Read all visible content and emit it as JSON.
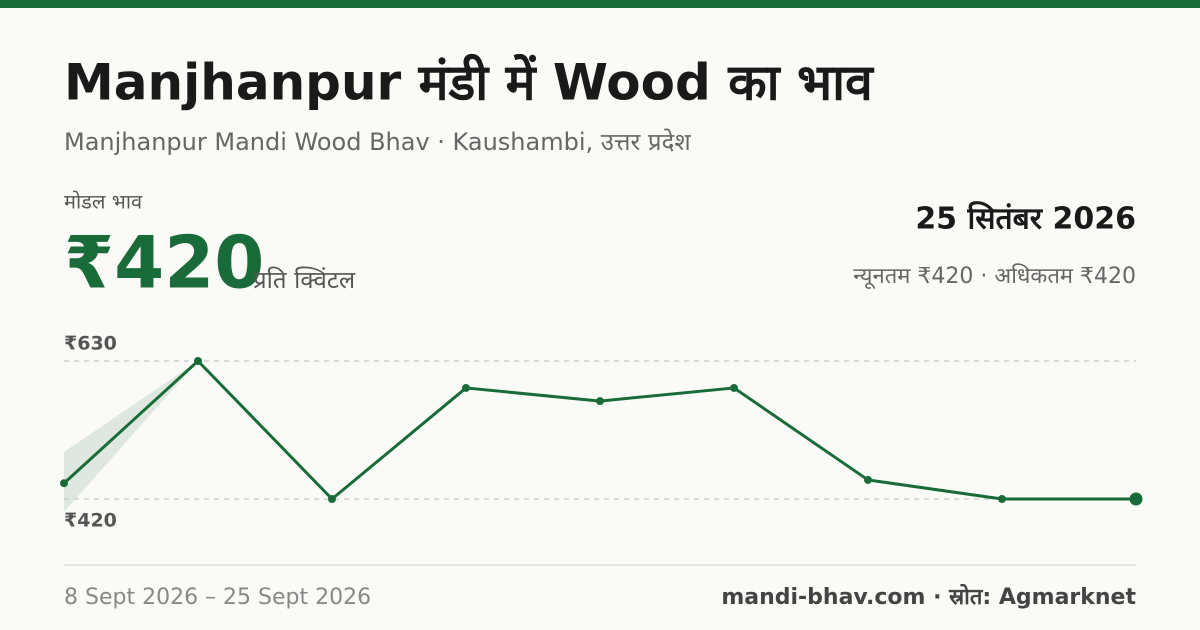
{
  "header": {
    "title": "Manjhanpur मंडी में Wood का भाव",
    "subtitle": "Manjhanpur Mandi Wood Bhav · Kaushambi, उत्तर प्रदेश"
  },
  "price": {
    "label": "मोडल भाव",
    "value": "₹420",
    "unit": "प्रति क्विंटल",
    "date": "25 सितंबर 2026",
    "range": "न्यूनतम ₹420 · अधिकतम ₹420"
  },
  "chart_data": {
    "type": "line",
    "color": "#1a6b3a",
    "categories": [
      null,
      null,
      null,
      null,
      null,
      null,
      null,
      null,
      null
    ],
    "values": [
      444,
      630,
      420,
      589,
      569,
      589,
      449,
      420,
      420
    ],
    "ylim": [
      420,
      630
    ],
    "yticks": [
      {
        "value": 420,
        "label": "₹420"
      },
      {
        "value": 630,
        "label": "₹630"
      }
    ],
    "grid": true
  },
  "footer": {
    "period": "8 Sept 2026 – 25 Sept 2026",
    "source": "mandi-bhav.com · स्रोत: Agmarknet"
  }
}
